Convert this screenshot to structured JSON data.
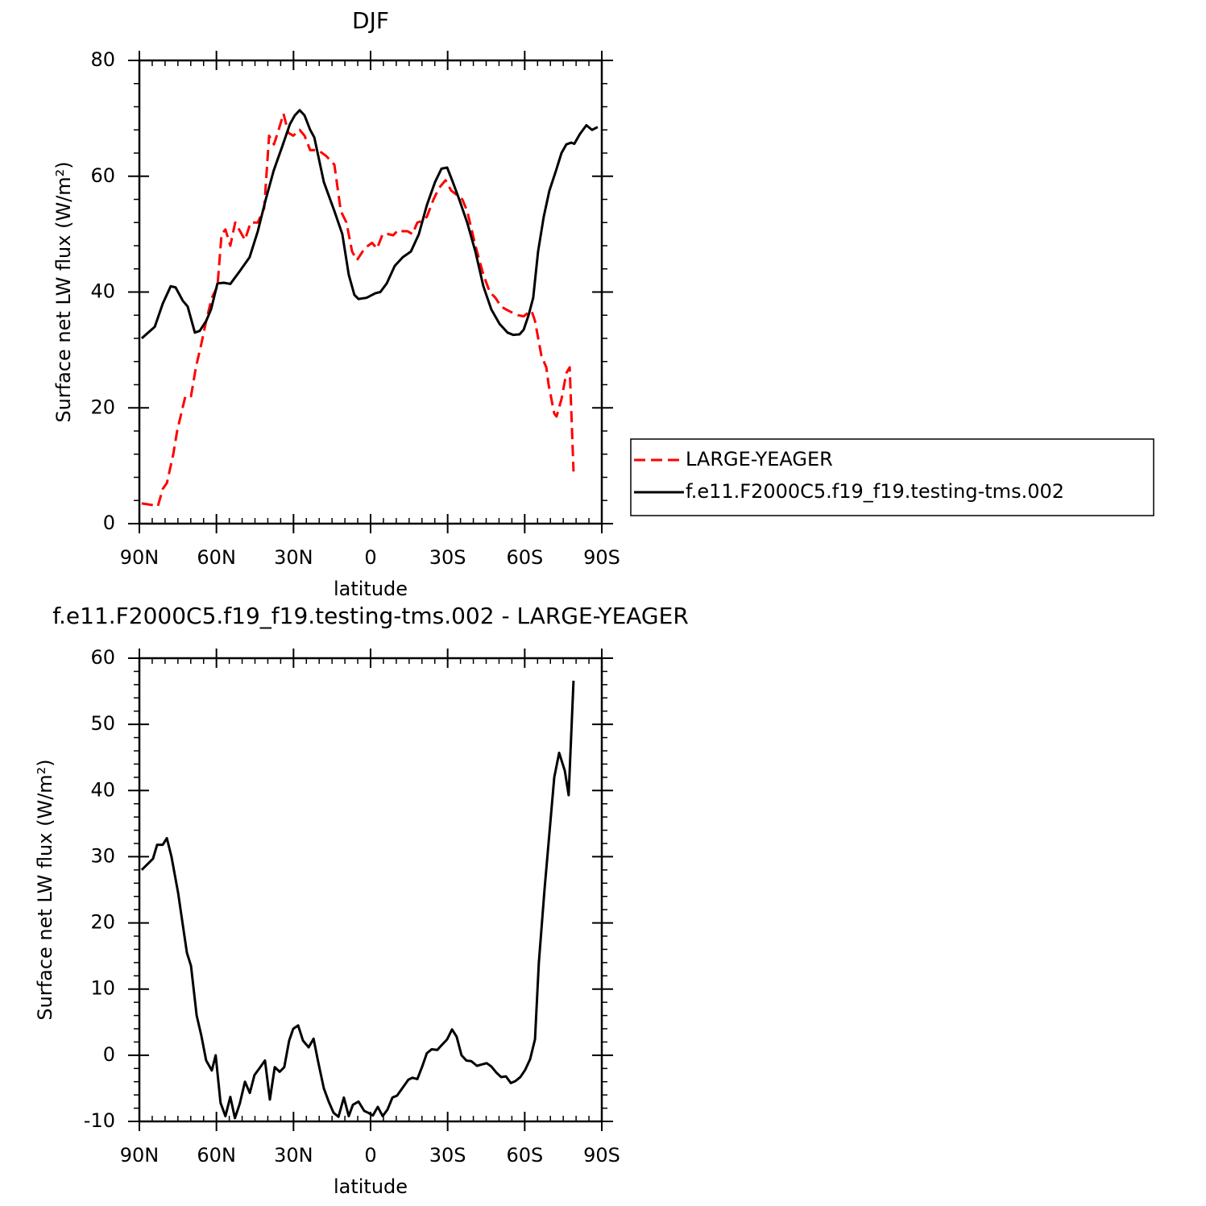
{
  "chart_data": [
    {
      "type": "line",
      "title": "DJF",
      "xlabel": "latitude",
      "ylabel": "Surface net LW flux (W/m²)",
      "xlim": [
        90,
        -90
      ],
      "xticks": [
        {
          "value": 90,
          "label": "90N"
        },
        {
          "value": 60,
          "label": "60N"
        },
        {
          "value": 30,
          "label": "30N"
        },
        0,
        {
          "value": -30,
          "label": "30S"
        },
        {
          "value": -60,
          "label": "60S"
        },
        {
          "value": -90,
          "label": "90S"
        }
      ],
      "ylim": [
        0,
        80
      ],
      "yticks": [
        0,
        20,
        40,
        60,
        80
      ],
      "legend": "right",
      "series": [
        {
          "name": "LARGE-YEAGER",
          "color": "#ff0000",
          "style": "dashed",
          "x": [
            89.1,
            84.7,
            82.8,
            80.9,
            79.3,
            76.8,
            75.3,
            72.1,
            69.9,
            68.0,
            65.9,
            64.0,
            61.8,
            59.6,
            58.0,
            56.5,
            54.6,
            52.7,
            50.8,
            48.9,
            46.7,
            43.9,
            41.4,
            39.5,
            37.6,
            35.8,
            33.9,
            32.0,
            30.1,
            27.6,
            25.7,
            23.5,
            20.4,
            17.3,
            14.1,
            11.6,
            9.4,
            7.2,
            5.3,
            3.1,
            1.6,
            -0.6,
            -2.5,
            -4.7,
            -6.9,
            -8.8,
            -10.7,
            -12.6,
            -14.4,
            -16.3,
            -18.2,
            -20.1,
            -21.9,
            -24.5,
            -26.7,
            -29.2,
            -31.4,
            -33.5,
            -35.7,
            -37.6,
            -40.8,
            -43.9,
            -46.4,
            -48.6,
            -50.8,
            -52.7,
            -54.9,
            -57.4,
            -59.6,
            -61.5,
            -62.7,
            -64.0,
            -66.5,
            -68.4,
            -69.3,
            -71.5,
            -72.4,
            -74.3,
            -76.2,
            -77.5,
            -79.0
          ],
          "values": [
            3.5,
            3.2,
            3,
            6,
            7,
            12,
            16,
            22,
            22,
            27,
            31,
            35,
            39,
            41,
            50,
            50.8,
            48,
            52,
            50.5,
            49,
            52,
            52,
            54.5,
            67,
            65.5,
            68,
            70.8,
            67.5,
            67,
            68,
            67,
            64.5,
            64.5,
            63.5,
            62,
            54,
            52,
            47,
            45.5,
            47,
            47.8,
            48.5,
            47.5,
            50,
            50,
            49.8,
            50.7,
            50.5,
            50.5,
            50,
            52,
            52.3,
            53,
            56,
            58,
            59.3,
            57.5,
            56.8,
            56,
            54,
            48,
            43,
            40,
            39,
            37.5,
            37,
            36.5,
            36,
            35.8,
            36.5,
            36.7,
            35,
            29,
            27,
            24,
            19,
            18.5,
            21.5,
            26,
            27,
            9
          ]
        },
        {
          "name": "f.e11.F2000C5.f19_f19.testing-tms.002",
          "color": "#000000",
          "style": "solid",
          "x": [
            89.1,
            84.0,
            80.9,
            77.8,
            75.9,
            73.1,
            71.2,
            68.4,
            66.5,
            64.0,
            62.1,
            59.6,
            57.1,
            54.6,
            51.1,
            47.1,
            43.9,
            40.8,
            37.7,
            34.5,
            31.4,
            29.5,
            27.6,
            25.7,
            23.5,
            21.9,
            18.2,
            14.1,
            11.0,
            8.5,
            6.3,
            4.7,
            1.6,
            -1.9,
            -3.8,
            -6.3,
            -9.4,
            -12.5,
            -15.7,
            -18.8,
            -21.9,
            -25.1,
            -27.6,
            -29.8,
            -32.0,
            -34.5,
            -37.6,
            -40.8,
            -43.9,
            -47.0,
            -50.2,
            -53.3,
            -55.5,
            -58.0,
            -59.6,
            -61.5,
            -63.3,
            -65.2,
            -67.4,
            -69.6,
            -72.2,
            -74.3,
            -76.2,
            -78.1,
            -79.3,
            -81.5,
            -84.0,
            -86.2,
            -88.4
          ],
          "values": [
            32,
            34,
            38,
            41,
            40.8,
            38.5,
            37.5,
            33,
            33.3,
            35,
            37,
            41.5,
            41.6,
            41.4,
            43.5,
            46,
            50.5,
            56,
            61,
            65,
            69,
            70.5,
            71.4,
            70.5,
            68,
            66.7,
            59,
            54,
            50,
            43,
            39.5,
            38.8,
            39,
            39.8,
            40,
            41.5,
            44.5,
            46,
            47,
            50,
            55,
            59,
            61.3,
            61.5,
            59,
            56,
            52,
            47,
            41,
            37,
            34.5,
            33,
            32.6,
            32.7,
            33.5,
            36,
            39,
            47,
            53,
            57.5,
            61,
            64,
            65.5,
            65.8,
            65.6,
            67.3,
            68.8,
            68,
            68.5
          ]
        }
      ]
    },
    {
      "type": "line",
      "title": "f.e11.F2000C5.f19_f19.testing-tms.002 - LARGE-YEAGER",
      "xlabel": "latitude",
      "ylabel": "Surface net LW flux (W/m²)",
      "xlim": [
        90,
        -90
      ],
      "xticks": [
        {
          "value": 90,
          "label": "90N"
        },
        {
          "value": 60,
          "label": "60N"
        },
        {
          "value": 30,
          "label": "30N"
        },
        0,
        {
          "value": -30,
          "label": "30S"
        },
        {
          "value": -60,
          "label": "60S"
        },
        {
          "value": -90,
          "label": "90S"
        }
      ],
      "ylim": [
        -10,
        60
      ],
      "yticks": [
        -10,
        0,
        10,
        20,
        30,
        40,
        50,
        60
      ],
      "series": [
        {
          "color": "#000000",
          "style": "solid",
          "x": [
            89.1,
            84.7,
            83.1,
            80.9,
            79.3,
            77.5,
            74.9,
            73.4,
            71.5,
            69.9,
            67.7,
            65.9,
            64.0,
            61.8,
            60.3,
            58.4,
            56.5,
            54.6,
            52.8,
            50.9,
            48.9,
            47.0,
            45.2,
            43.3,
            41.1,
            39.2,
            37.3,
            35.4,
            33.6,
            31.7,
            30.1,
            28.2,
            26.3,
            24.1,
            22.2,
            20.4,
            18.2,
            16.3,
            14.4,
            12.5,
            10.4,
            8.5,
            6.9,
            4.7,
            2.5,
            0.9,
            -0.9,
            -2.8,
            -4.7,
            -6.6,
            -8.5,
            -10.3,
            -12.5,
            -14.7,
            -16.3,
            -18.2,
            -20.1,
            -21.9,
            -23.8,
            -26.0,
            -27.6,
            -29.8,
            -31.7,
            -33.5,
            -35.4,
            -37.3,
            -39.2,
            -41.4,
            -43.3,
            -45.2,
            -47.0,
            -48.9,
            -50.8,
            -52.7,
            -54.6,
            -56.4,
            -58.3,
            -60.2,
            -62.1,
            -64.0,
            -65.5,
            -67.7,
            -69.6,
            -71.5,
            -73.4,
            -75.6,
            -77.1,
            -79.0
          ],
          "values": [
            28,
            29.7,
            31.8,
            31.8,
            32.8,
            30,
            24.5,
            20.5,
            15.5,
            13.5,
            6,
            3,
            -0.8,
            -2.3,
            0,
            -7.2,
            -9.2,
            -6.3,
            -9.5,
            -7.3,
            -4,
            -5.7,
            -3,
            -2,
            -0.8,
            -6.7,
            -1.8,
            -2.5,
            -1.8,
            2.2,
            4,
            4.5,
            2.2,
            1.2,
            2.5,
            -1,
            -5,
            -7,
            -8.7,
            -9.3,
            -6.4,
            -9.2,
            -7.5,
            -7,
            -8.4,
            -8.7,
            -9.1,
            -7.8,
            -9.2,
            -8.2,
            -6.4,
            -6.1,
            -4.9,
            -3.7,
            -3.4,
            -3.6,
            -1.7,
            0.3,
            0.9,
            0.8,
            1.5,
            2.4,
            3.9,
            2.8,
            0,
            -0.8,
            -0.9,
            -1.6,
            -1.4,
            -1.2,
            -1.7,
            -2.6,
            -3.3,
            -3.2,
            -4.2,
            -3.9,
            -3.3,
            -2.2,
            -0.6,
            2.4,
            14,
            25,
            33.5,
            42,
            45.7,
            43,
            39.3,
            56.6
          ]
        }
      ]
    }
  ]
}
